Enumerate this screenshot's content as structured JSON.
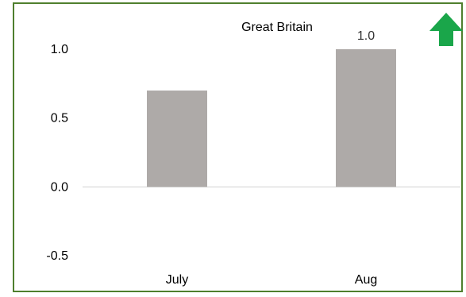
{
  "chart_data": {
    "type": "bar",
    "title": "Great Britain",
    "categories": [
      "July",
      "Aug"
    ],
    "values": [
      0.7,
      1.0
    ],
    "data_labels": [
      null,
      "1.0"
    ],
    "ylim": [
      -0.5,
      1.0
    ],
    "yticks": [
      -0.5,
      0.0,
      0.5,
      1.0
    ],
    "ytick_labels": [
      "-0.5",
      "0.0",
      "0.5",
      "1.0"
    ],
    "xlabel": "",
    "ylabel": "",
    "grid": false,
    "legend": "none",
    "bar_color": "#aeaaa8",
    "axis_color": "#d0d0d0",
    "frame_color": "#4f7f2e",
    "indicator": {
      "icon": "up-arrow-icon",
      "color": "#1aa64a"
    }
  }
}
